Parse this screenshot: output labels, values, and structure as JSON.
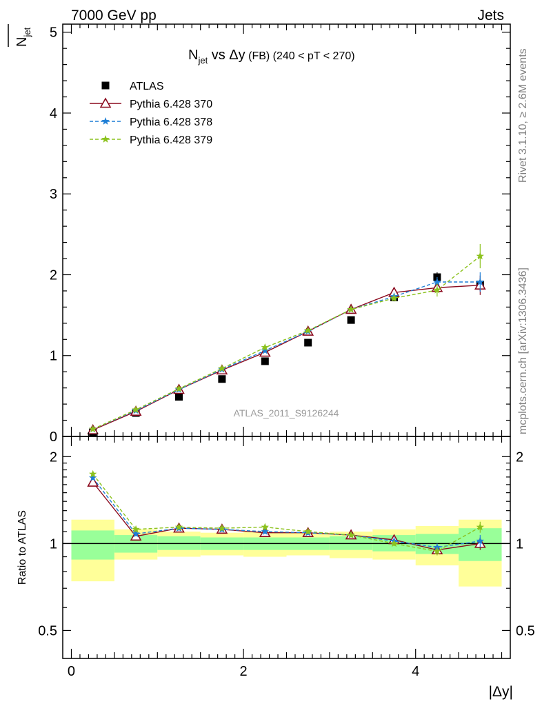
{
  "header": {
    "left": "7000 GeV pp",
    "right": "Jets"
  },
  "top_ylabel": "N_jet",
  "side_labels": {
    "rivet": "Rivet 3.1.10, ≥ 2.6M events",
    "mcplots": "mcplots.cern.ch [arXiv:1306.3436]"
  },
  "watermark": "ATLAS_2011_S9126244",
  "colors": {
    "data": "#000000",
    "p370": "#8b0a1e",
    "p378": "#1f7fd6",
    "p379": "#8cc21e",
    "band_inner": "#99ff99",
    "band_outer": "#ffff99"
  },
  "chart_data": [
    {
      "type": "line",
      "title": "N_jet vs Δy (FB) (240 < pT < 270)",
      "title_parts": {
        "main": "N",
        "sub": "jet",
        "rest": " vs Δy",
        "small": " (FB)",
        "range": " (240 < pT < 270)"
      },
      "xlabel": "|Δy|",
      "ylabel": "N_jet",
      "xlim": [
        -0.1,
        5.1
      ],
      "ylim": [
        0,
        5.1
      ],
      "yticks": [
        0,
        1,
        2,
        3,
        4,
        5
      ],
      "ytick_labels": [
        "0",
        "1",
        "2",
        "3",
        "4",
        "5"
      ],
      "legend_position": "top-left",
      "x": [
        0.25,
        0.75,
        1.25,
        1.75,
        2.25,
        2.75,
        3.25,
        3.75,
        4.25,
        4.75
      ],
      "series": [
        {
          "name": "ATLAS",
          "key": "data",
          "marker": "square",
          "values": [
            0.05,
            0.29,
            0.49,
            0.71,
            0.93,
            1.16,
            1.44,
            1.72,
            1.97,
            1.88
          ],
          "errors": [
            0.005,
            0.01,
            0.01,
            0.02,
            0.02,
            0.03,
            0.03,
            0.04,
            0.06,
            0.08
          ]
        },
        {
          "name": "Pythia 6.428 370",
          "key": "p370",
          "marker": "triangle",
          "values": [
            0.08,
            0.31,
            0.58,
            0.82,
            1.04,
            1.3,
            1.57,
            1.78,
            1.84,
            1.87
          ],
          "errors": [
            0.01,
            0.01,
            0.01,
            0.01,
            0.02,
            0.02,
            0.02,
            0.04,
            0.06,
            0.12
          ]
        },
        {
          "name": "Pythia 6.428 378",
          "key": "p378",
          "marker": "star",
          "values": [
            0.09,
            0.32,
            0.58,
            0.83,
            1.06,
            1.3,
            1.57,
            1.73,
            1.91,
            1.91
          ],
          "errors": [
            0.01,
            0.01,
            0.01,
            0.01,
            0.02,
            0.02,
            0.02,
            0.04,
            0.06,
            0.12
          ]
        },
        {
          "name": "Pythia 6.428 379",
          "key": "p379",
          "marker": "star",
          "values": [
            0.09,
            0.33,
            0.59,
            0.84,
            1.1,
            1.31,
            1.57,
            1.71,
            1.81,
            2.23
          ],
          "errors": [
            0.01,
            0.01,
            0.01,
            0.01,
            0.02,
            0.02,
            0.02,
            0.04,
            0.08,
            0.15
          ]
        }
      ]
    },
    {
      "type": "line",
      "ylabel": "Ratio to ATLAS",
      "xlabel": "|Δy|",
      "xlim": [
        -0.1,
        5.1
      ],
      "ylim": [
        0.4,
        2.35
      ],
      "yticks": [
        0.5,
        1,
        2
      ],
      "ytick_labels": [
        "0.5",
        "1",
        "2"
      ],
      "xticks": [
        0,
        2,
        4
      ],
      "xtick_labels": [
        "0",
        "2",
        "4"
      ],
      "bins": [
        [
          0.0,
          0.5
        ],
        [
          0.5,
          1.0
        ],
        [
          1.0,
          1.5
        ],
        [
          1.5,
          2.0
        ],
        [
          2.0,
          2.5
        ],
        [
          2.5,
          3.0
        ],
        [
          3.0,
          3.5
        ],
        [
          3.5,
          4.0
        ],
        [
          4.0,
          4.5
        ],
        [
          4.5,
          5.0
        ]
      ],
      "band_inner": [
        [
          0.88,
          1.11
        ],
        [
          0.93,
          1.07
        ],
        [
          0.95,
          1.06
        ],
        [
          0.95,
          1.05
        ],
        [
          0.95,
          1.05
        ],
        [
          0.95,
          1.05
        ],
        [
          0.95,
          1.06
        ],
        [
          0.94,
          1.07
        ],
        [
          0.92,
          1.08
        ],
        [
          0.87,
          1.13
        ]
      ],
      "band_outer": [
        [
          0.74,
          1.21
        ],
        [
          0.88,
          1.12
        ],
        [
          0.9,
          1.1
        ],
        [
          0.91,
          1.09
        ],
        [
          0.9,
          1.1
        ],
        [
          0.91,
          1.09
        ],
        [
          0.89,
          1.1
        ],
        [
          0.88,
          1.12
        ],
        [
          0.84,
          1.15
        ],
        [
          0.71,
          1.21
        ]
      ],
      "x": [
        0.25,
        0.75,
        1.25,
        1.75,
        2.25,
        2.75,
        3.25,
        3.75,
        4.25,
        4.75
      ],
      "series": [
        {
          "name": "Pythia 6.428 370",
          "key": "p370",
          "marker": "triangle",
          "values": [
            1.63,
            1.06,
            1.13,
            1.12,
            1.09,
            1.09,
            1.07,
            1.03,
            0.95,
            1.0
          ],
          "errors": [
            0.03,
            0.02,
            0.02,
            0.02,
            0.02,
            0.02,
            0.02,
            0.02,
            0.03,
            0.05
          ]
        },
        {
          "name": "Pythia 6.428 378",
          "key": "p378",
          "marker": "star",
          "values": [
            1.69,
            1.08,
            1.13,
            1.12,
            1.1,
            1.09,
            1.07,
            1.02,
            0.97,
            1.02
          ],
          "errors": [
            0.03,
            0.02,
            0.02,
            0.02,
            0.02,
            0.02,
            0.02,
            0.02,
            0.03,
            0.05
          ]
        },
        {
          "name": "Pythia 6.428 379",
          "key": "p379",
          "marker": "star",
          "values": [
            1.74,
            1.12,
            1.14,
            1.13,
            1.14,
            1.1,
            1.07,
            1.0,
            0.94,
            1.14
          ],
          "errors": [
            0.03,
            0.02,
            0.02,
            0.02,
            0.02,
            0.02,
            0.02,
            0.02,
            0.03,
            0.05
          ]
        }
      ]
    }
  ]
}
